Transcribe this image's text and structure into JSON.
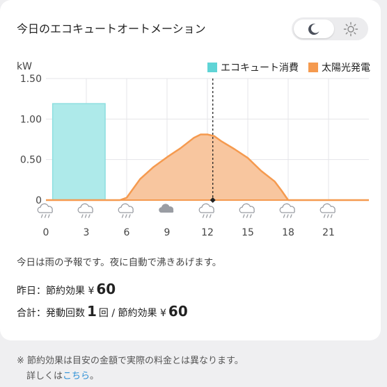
{
  "title": "今日のエコキュートオートメーション",
  "theme_toggle": {
    "options": [
      "moon-icon",
      "sun-icon"
    ],
    "selected": "moon-icon"
  },
  "chart_data": {
    "type": "area",
    "ylabel": "kW",
    "y_ticks": [
      "1.50",
      "1.00",
      "0.50",
      "0"
    ],
    "ylim": [
      0,
      1.5
    ],
    "x_ticks": [
      "0",
      "3",
      "6",
      "9",
      "12",
      "15",
      "18",
      "21"
    ],
    "xlim": [
      0,
      24
    ],
    "grid": true,
    "legend_position": "top-right",
    "series": [
      {
        "name": "エコキュート消費",
        "color": "#5fd4d6",
        "type": "bar",
        "x_start": 0.5,
        "x_end": 4.4,
        "value": 1.19
      },
      {
        "name": "太陽光発電",
        "color": "#f59a4f",
        "type": "area",
        "x": [
          0,
          5.5,
          6,
          7,
          8,
          9,
          10,
          11,
          11.5,
          12,
          12.5,
          13,
          14,
          15,
          16,
          17,
          17.5,
          18,
          24
        ],
        "values": [
          0,
          0,
          0.03,
          0.26,
          0.41,
          0.53,
          0.64,
          0.77,
          0.81,
          0.81,
          0.79,
          0.73,
          0.63,
          0.52,
          0.36,
          0.23,
          0.12,
          0,
          0
        ]
      }
    ],
    "marker_x": 12.4,
    "weather_icons": [
      "rain",
      "rain",
      "rain",
      "cloud",
      "rain",
      "rain",
      "rain",
      "rain"
    ]
  },
  "message": "今日は雨の予報です。夜に自動で沸きあげます。",
  "yesterday": {
    "label": "昨日：節約効果 ¥",
    "value": "60"
  },
  "total": {
    "label": "合計：発動回数",
    "count": "1",
    "count_unit": "回 / 節約効果 ¥",
    "value": "60"
  },
  "footer": {
    "note": "※ 節約効果は目安の金額で実際の料金とは異なります。",
    "detail_prefix": "詳しくは",
    "link": "こちら",
    "detail_suffix": "。"
  }
}
